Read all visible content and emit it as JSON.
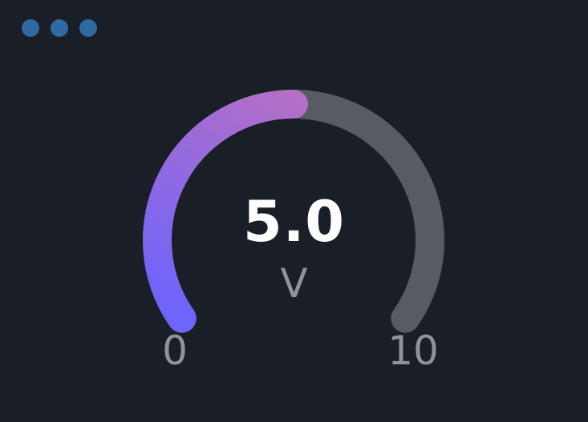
{
  "window": {
    "controls": [
      "menu-dot",
      "menu-dot",
      "menu-dot"
    ]
  },
  "gauge": {
    "value": 5.0,
    "value_text": "5.0",
    "unit": "V",
    "min": 0,
    "max": 10,
    "min_label": "0",
    "max_label": "10",
    "fill_fraction": 0.5,
    "colors": {
      "background": "#1a1e27",
      "track": "#575b63",
      "fill_start": "#6f64fb",
      "fill_end": "#b46fc6",
      "value_text": "#ffffff",
      "label_text": "#8e939c",
      "dots": "#2f6aa3"
    }
  }
}
